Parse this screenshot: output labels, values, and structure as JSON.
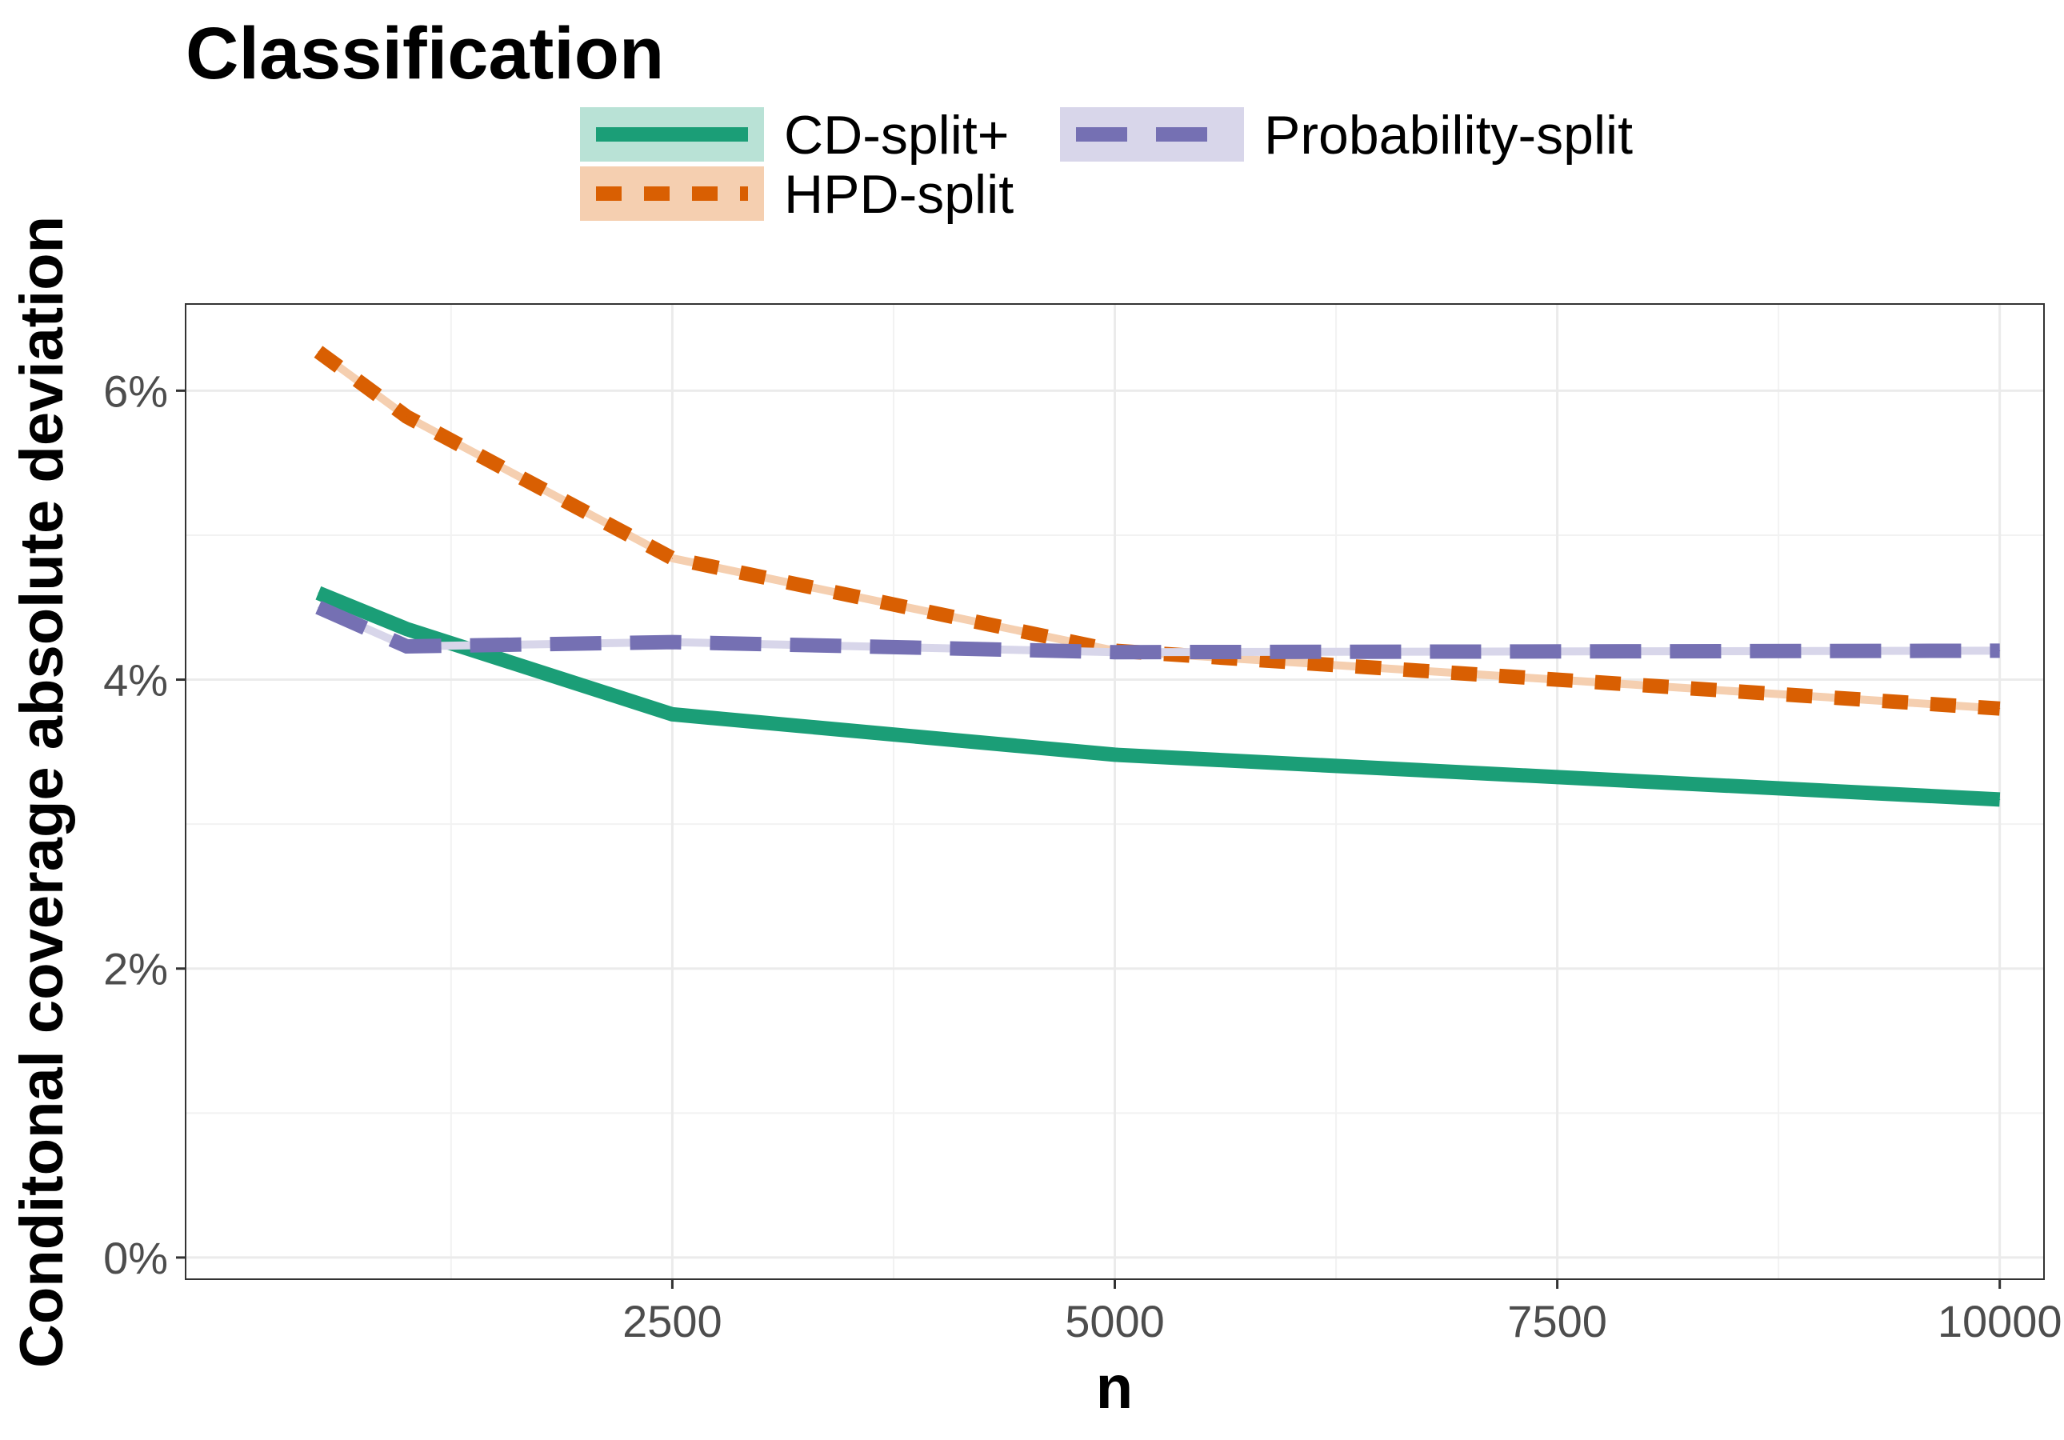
{
  "chart_data": {
    "type": "line",
    "title": "Classification",
    "xlabel": "n",
    "ylabel": "Conditonal coverage absolute deviation",
    "x": [
      500,
      1000,
      2500,
      5000,
      10000
    ],
    "xlim": [
      -250,
      10250
    ],
    "ylim": [
      -0.0015,
      0.066
    ],
    "x_ticks": [
      2500,
      5000,
      7500,
      10000
    ],
    "x_tick_labels": [
      "2500",
      "5000",
      "7500",
      "10000"
    ],
    "y_ticks": [
      0,
      0.02,
      0.04,
      0.06
    ],
    "y_tick_labels": [
      "0%",
      "2%",
      "4%",
      "6%"
    ],
    "grid": true,
    "legend_position": "top",
    "series": [
      {
        "name": "CD-split+",
        "values": [
          0.046,
          0.0435,
          0.0376,
          0.0348,
          0.0317
        ],
        "color": "#1b9e77",
        "halo": "#b9e2d6",
        "dash": "solid"
      },
      {
        "name": "HPD-split",
        "values": [
          0.0627,
          0.0582,
          0.0484,
          0.042,
          0.038
        ],
        "color": "#d95f02",
        "halo": "#f5cfb0",
        "dash": "short"
      },
      {
        "name": "Probability-split",
        "values": [
          0.045,
          0.0423,
          0.0426,
          0.0419,
          0.042
        ],
        "color": "#7570b3",
        "halo": "#d8d6ea",
        "dash": "long"
      }
    ]
  }
}
